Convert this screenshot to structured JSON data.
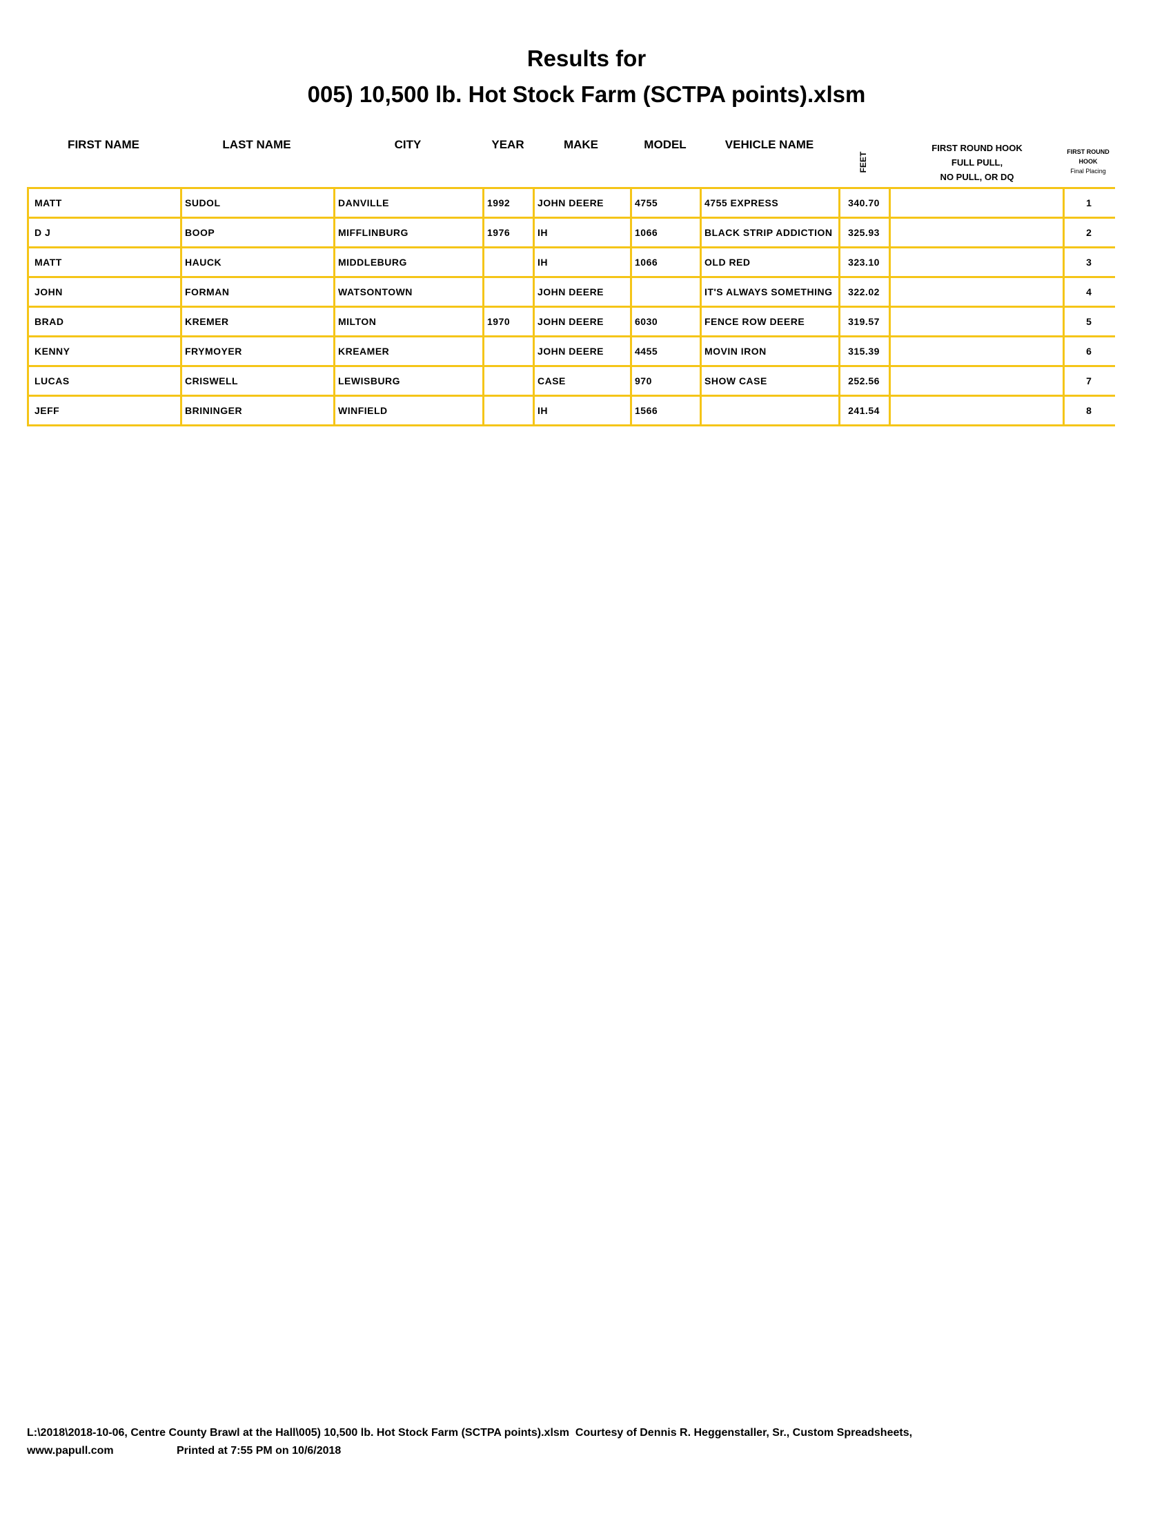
{
  "title_line1": "Results for",
  "title_line2": "005) 10,500 lb. Hot Stock Farm (SCTPA points).xlsm",
  "columns": {
    "first_name": "FIRST NAME",
    "last_name": "LAST NAME",
    "city": "CITY",
    "year": "YEAR",
    "make": "MAKE",
    "model": "MODEL",
    "vehicle_name": "VEHICLE NAME",
    "feet": "FEET",
    "hook_line1": "FIRST ROUND HOOK",
    "hook_line2": "FULL PULL,",
    "hook_line3": "NO PULL, OR DQ",
    "placing_line1": "FIRST ROUND",
    "placing_line2": "HOOK",
    "placing_line3": "Final Placing"
  },
  "rows": [
    {
      "first": "MATT",
      "last": "SUDOL",
      "city": "DANVILLE",
      "year": "1992",
      "make": "JOHN DEERE",
      "model": "4755",
      "vehicle": "4755 EXPRESS",
      "feet": "340.70",
      "hook": "",
      "place": "1"
    },
    {
      "first": "D J",
      "last": "BOOP",
      "city": "MIFFLINBURG",
      "year": "1976",
      "make": "IH",
      "model": "1066",
      "vehicle": "BLACK STRIP ADDICTION",
      "feet": "325.93",
      "hook": "",
      "place": "2"
    },
    {
      "first": "MATT",
      "last": "HAUCK",
      "city": "MIDDLEBURG",
      "year": "",
      "make": "IH",
      "model": "1066",
      "vehicle": "OLD RED",
      "feet": "323.10",
      "hook": "",
      "place": "3"
    },
    {
      "first": "JOHN",
      "last": "FORMAN",
      "city": "WATSONTOWN",
      "year": "",
      "make": "JOHN DEERE",
      "model": "",
      "vehicle": "IT'S ALWAYS SOMETHING",
      "feet": "322.02",
      "hook": "",
      "place": "4"
    },
    {
      "first": "BRAD",
      "last": "KREMER",
      "city": "MILTON",
      "year": "1970",
      "make": "JOHN DEERE",
      "model": "6030",
      "vehicle": "FENCE ROW DEERE",
      "feet": "319.57",
      "hook": "",
      "place": "5"
    },
    {
      "first": "KENNY",
      "last": "FRYMOYER",
      "city": "KREAMER",
      "year": "",
      "make": "JOHN DEERE",
      "model": "4455",
      "vehicle": "MOVIN IRON",
      "feet": "315.39",
      "hook": "",
      "place": "6"
    },
    {
      "first": "LUCAS",
      "last": "CRISWELL",
      "city": "LEWISBURG",
      "year": "",
      "make": "CASE",
      "model": "970",
      "vehicle": "SHOW CASE",
      "feet": "252.56",
      "hook": "",
      "place": "7"
    },
    {
      "first": "JEFF",
      "last": "BRININGER",
      "city": "WINFIELD",
      "year": "",
      "make": "IH",
      "model": "1566",
      "vehicle": "",
      "feet": "241.54",
      "hook": "",
      "place": "8"
    }
  ],
  "footer_line1": "L:\\2018\\2018-10-06, Centre County Brawl at the Hall\\005) 10,500 lb. Hot Stock Farm (SCTPA points).xlsm  Courtesy of Dennis R. Heggenstaller, Sr., Custom Spreadsheets,",
  "footer_url": "www.papull.com",
  "footer_printed": "Printed at 7:55 PM on 10/6/2018",
  "colors": {
    "grid": "#F5C518",
    "text": "#000000"
  }
}
